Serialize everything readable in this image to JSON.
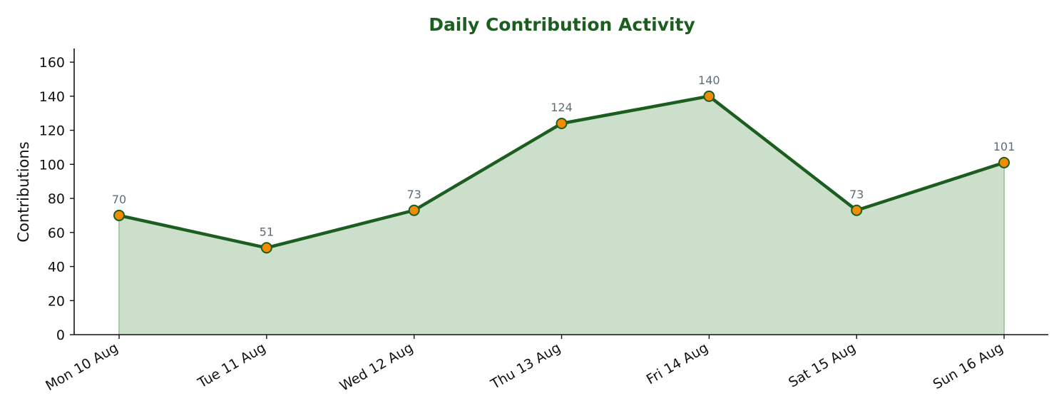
{
  "chart_data": {
    "type": "area",
    "title": "Daily Contribution Activity",
    "xlabel": "",
    "ylabel": "Contributions",
    "categories": [
      "Mon 10 Aug",
      "Tue 11 Aug",
      "Wed 12 Aug",
      "Thu 13 Aug",
      "Fri 14 Aug",
      "Sat 15 Aug",
      "Sun 16 Aug"
    ],
    "series": [
      {
        "values": [
          70,
          51,
          73,
          124,
          140,
          73,
          101
        ]
      }
    ],
    "ylim": [
      0,
      168
    ],
    "yticks": [
      0,
      20,
      40,
      60,
      80,
      100,
      120,
      140,
      160
    ],
    "grid": false,
    "legend": "none",
    "colors": {
      "title": "#1b5e20",
      "line": "#1b5e20",
      "fill": "#cbdfca",
      "marker": "#f28c00",
      "marker_edge": "#1b5e20",
      "data_label": "#5b6e78",
      "axis": "#111111"
    }
  }
}
